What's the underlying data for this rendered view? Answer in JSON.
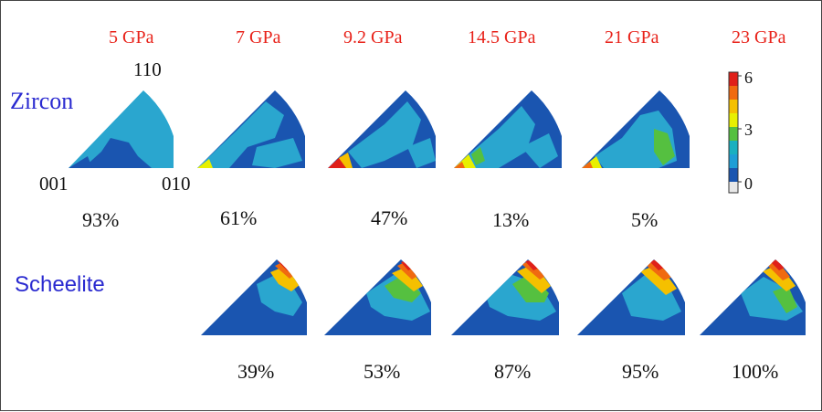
{
  "pressures": [
    "5 GPa",
    "7 GPa",
    "9.2 GPa",
    "14.5 GPa",
    "21 GPa",
    "23 GPa"
  ],
  "phases": [
    {
      "name": "Zircon",
      "fractions": [
        "93%",
        "61%",
        "47%",
        "13%",
        "5%"
      ]
    },
    {
      "name": "Scheelite",
      "fractions": [
        "39%",
        "53%",
        "87%",
        "95%",
        "100%"
      ]
    }
  ],
  "orientation_labels": {
    "top": "110",
    "left": "001",
    "right": "010"
  },
  "colorbar": {
    "ticks": [
      "6",
      "3",
      "0"
    ],
    "colors": [
      "#e0201a",
      "#f06a10",
      "#f5c000",
      "#e8f000",
      "#55c040",
      "#1ab0c0",
      "#1e9ed6",
      "#1a55b0",
      "#e8e8e8"
    ]
  },
  "colors": {
    "pressure_text": "#e8221a",
    "phase_text": "#2a2ad0",
    "base_blue": "#1a55b0",
    "cyan": "#2aa6cf"
  }
}
